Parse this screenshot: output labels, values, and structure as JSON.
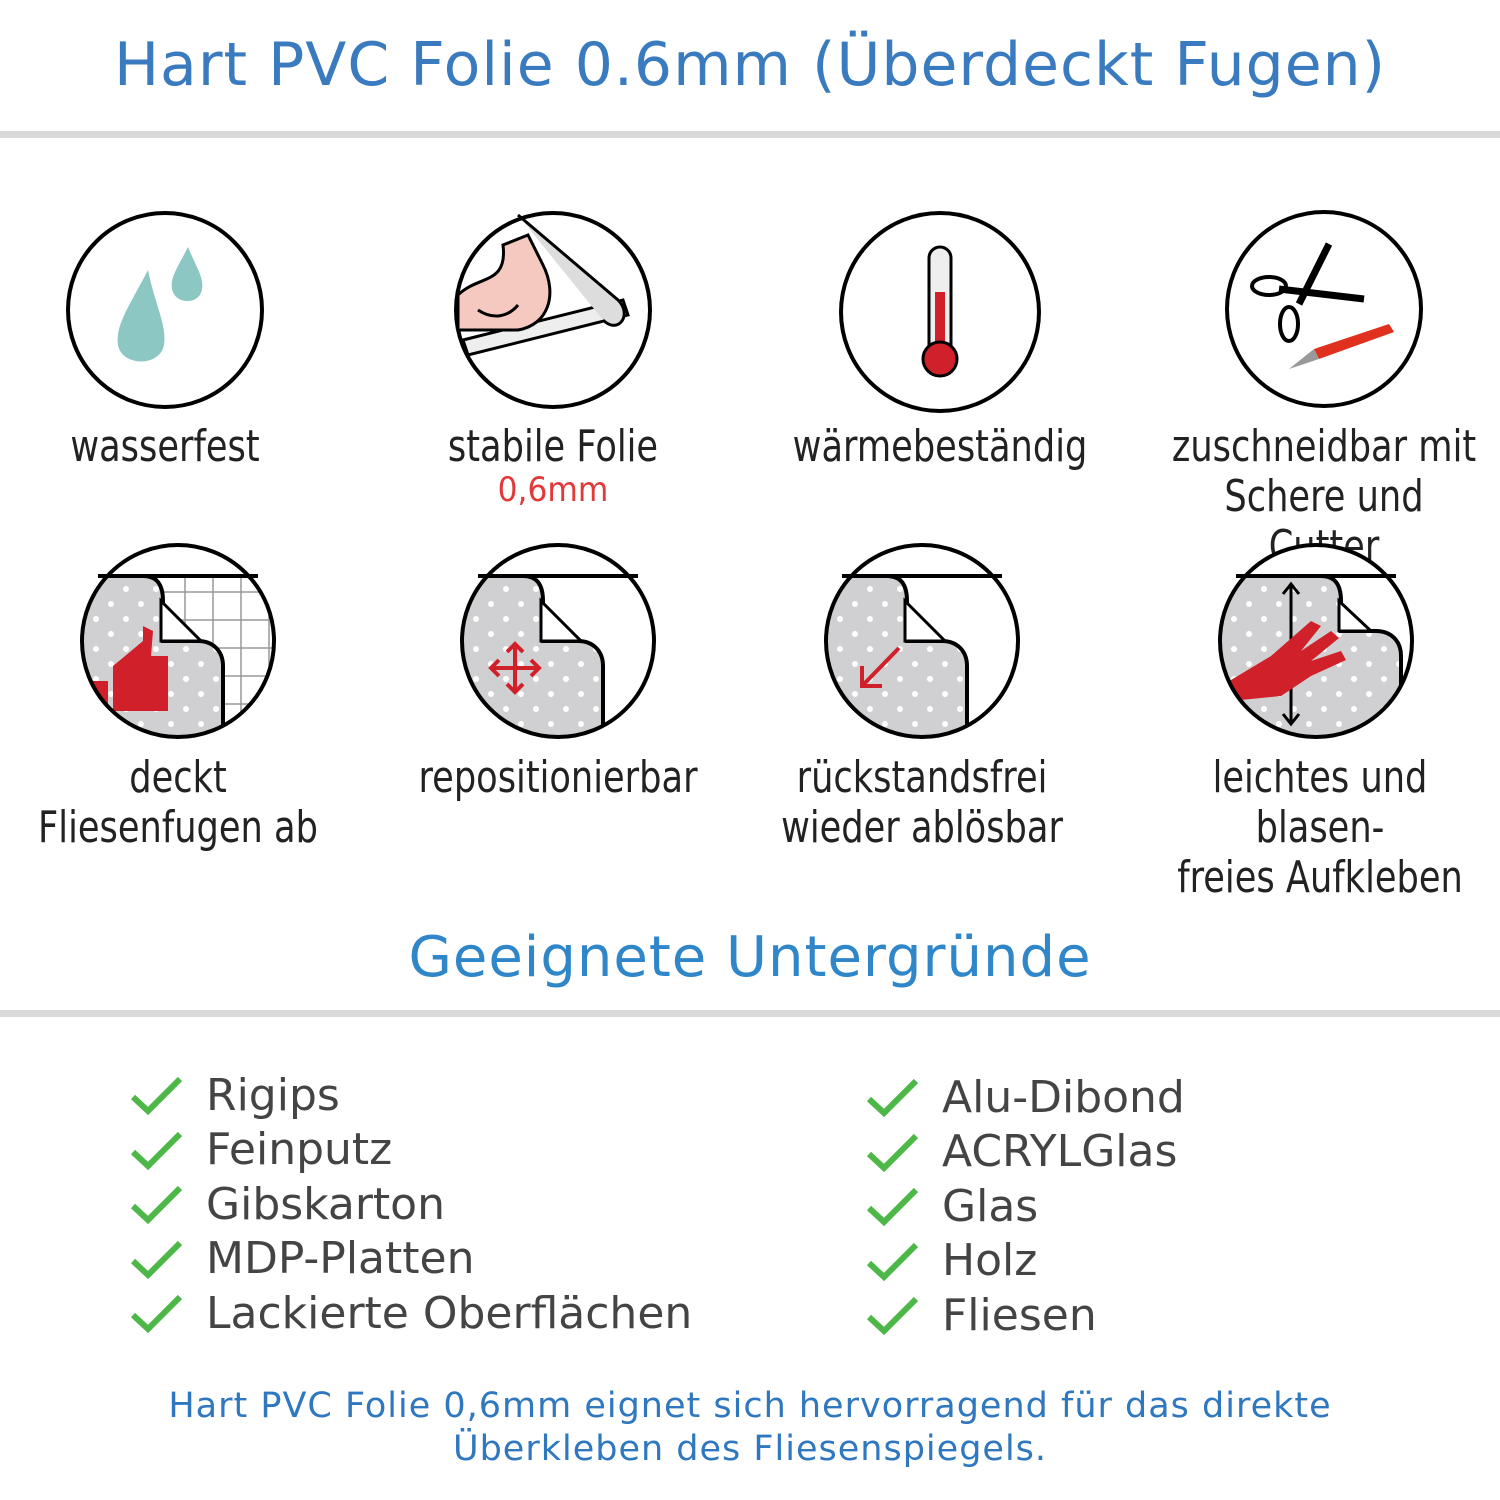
{
  "header": {
    "title": "Hart PVC Folie 0.6mm (Überdeckt Fugen)"
  },
  "features": [
    {
      "icon": "water-drops-icon",
      "label": "wasserfest"
    },
    {
      "icon": "strong-arm-foil-icon",
      "label": "stabile Folie",
      "sublabel": "0,6mm"
    },
    {
      "icon": "thermometer-icon",
      "label": "wärmebeständig"
    },
    {
      "icon": "scissors-cutter-icon",
      "label_lines": [
        "zuschneidbar mit",
        "Schere und Cutter"
      ]
    },
    {
      "icon": "thumbs-up-tile-icon",
      "label": "deckt Fliesenfugen ab"
    },
    {
      "icon": "move-arrows-icon",
      "label": "repositionierbar"
    },
    {
      "icon": "peel-arrow-icon",
      "label_lines": [
        "rückstandsfrei",
        "wieder ablösbar"
      ]
    },
    {
      "icon": "hand-smooth-icon",
      "label_lines": [
        "leichtes und blasen-",
        "freies Aufkleben"
      ]
    }
  ],
  "surfaces": {
    "title": "Geeignete Untergründe",
    "left": [
      "Rigips",
      "Feinputz",
      "Gibskarton",
      "MDP-Platten",
      "Lackierte Oberflächen"
    ],
    "right": [
      "Alu-Dibond",
      "ACRYLGlas",
      "Glas",
      "Holz",
      "Fliesen"
    ]
  },
  "footer": {
    "lines": [
      "Hart PVC Folie 0,6mm eignet sich hervorragend für das direkte",
      "Überkleben des Fliesenspiegels."
    ]
  },
  "colors": {
    "title": "#3a7bbf",
    "check": "#4db848",
    "accent_red": "#d0202a",
    "drop": "#8cc7c4",
    "foil": "#d0d0d2"
  }
}
